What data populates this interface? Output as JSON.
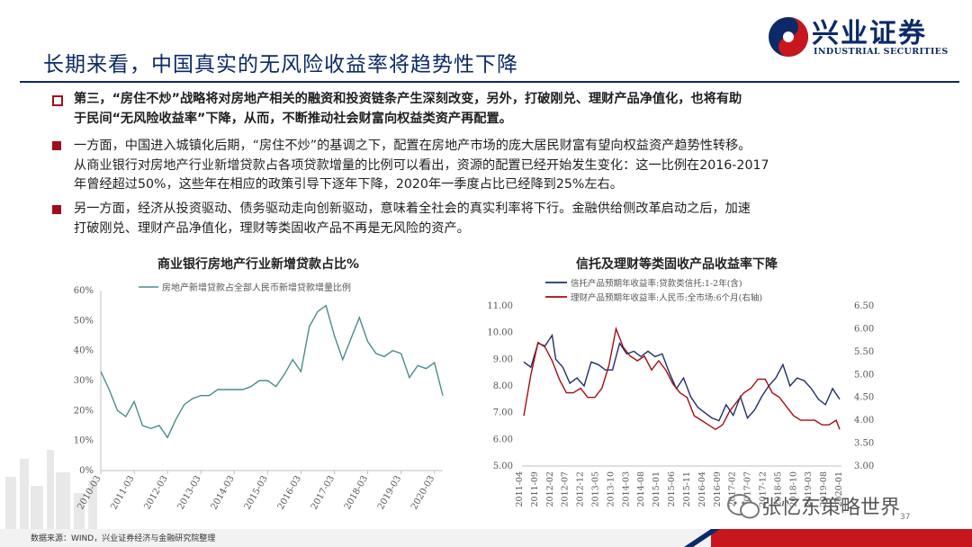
{
  "header": {
    "logo_cn": "兴业证券",
    "logo_en": "INDUSTRIAL SECURITIES",
    "title": "长期来看，中国真实的无风险收益率将趋势性下降"
  },
  "bullets": [
    {
      "style": "hollow",
      "bold": true,
      "lines": [
        "第三，“房住不炒”战略将对房地产相关的融资和投资链条产生深刻改变，另外，打破刚兑、理财产品净值化，也将有助",
        "于民间“无风险收益率”下降，从而，不断推动社会财富向权益类资产再配置。"
      ]
    },
    {
      "style": "solid",
      "bold": false,
      "lines": [
        "一方面，中国进入城镇化后期，“房住不炒”的基调之下，配置在房地产市场的庞大居民财富有望向权益资产趋势性转移。",
        "从商业银行对房地产行业新增贷款占各项贷款增量的比例可以看出，资源的配置已经开始发生变化：这一比例在2016-2017",
        "年曾经超过50%，这些年在相应的政策引导下逐年下降，2020年一季度占比已经降到25%左右。"
      ]
    },
    {
      "style": "solid",
      "bold": false,
      "lines": [
        "另一方面，经济从投资驱动、债务驱动走向创新驱动，意味着全社会的真实利率将下行。金融供给侧改革启动之后，加速",
        "打破刚兑、理财产品净值化，理财等类固收产品不再是无风险的资产。"
      ]
    }
  ],
  "colors": {
    "navy": "#0b2a67",
    "red": "#a10d1e",
    "line_left": "#4a8c8c",
    "line_navy": "#1f2f6b",
    "line_red": "#a50d10"
  },
  "chart_data": [
    {
      "type": "line",
      "title": "商业银行房地产行业新增贷款占比%",
      "legend": [
        "房地产新增贷款占全部人民币新增贷款增量比例"
      ],
      "y_ticks": [
        "0%",
        "10%",
        "20%",
        "30%",
        "40%",
        "50%",
        "60%"
      ],
      "ylim": [
        0,
        60
      ],
      "x_ticks": [
        "2010-03",
        "2011-03",
        "2012-03",
        "2013-03",
        "2014-03",
        "2015-03",
        "2016-03",
        "2017-03",
        "2018-03",
        "2019-03",
        "2020-03"
      ],
      "xlim": [
        2010.0,
        2020.25
      ],
      "series": [
        {
          "name": "房地产新增贷款占全部人民币新增贷款增量比例",
          "x": [
            2010.0,
            2010.25,
            2010.5,
            2010.75,
            2011.0,
            2011.25,
            2011.5,
            2011.75,
            2012.0,
            2012.25,
            2012.5,
            2012.75,
            2013.0,
            2013.25,
            2013.5,
            2013.75,
            2014.0,
            2014.25,
            2014.5,
            2014.75,
            2015.0,
            2015.25,
            2015.5,
            2015.75,
            2016.0,
            2016.25,
            2016.5,
            2016.75,
            2017.0,
            2017.25,
            2017.5,
            2017.75,
            2018.0,
            2018.25,
            2018.5,
            2018.75,
            2019.0,
            2019.25,
            2019.5,
            2019.75,
            2020.0,
            2020.25
          ],
          "y": [
            33,
            27,
            20,
            18,
            23,
            15,
            14,
            15,
            11,
            17,
            22,
            24,
            25,
            25,
            27,
            27,
            27,
            27,
            28,
            30,
            30,
            28,
            32,
            37,
            33,
            48,
            53,
            55,
            45,
            37,
            44,
            51,
            43,
            39,
            38,
            40,
            39,
            31,
            35,
            34,
            36,
            25
          ]
        }
      ]
    },
    {
      "type": "line",
      "title": "信托及理财等类固收产品收益率下降",
      "legend": [
        "信托产品预期年收益率:贷款类信托:1-2年(含)",
        "理财产品预期年收益率:人民币:全市场:6个月(右轴)"
      ],
      "y_left_ticks": [
        "5.00",
        "6.00",
        "7.00",
        "8.00",
        "9.00",
        "10.00",
        "11.00"
      ],
      "ylim_left": [
        5,
        11
      ],
      "y_right_ticks": [
        "3.00",
        "3.50",
        "4.00",
        "4.50",
        "5.00",
        "5.50",
        "6.00",
        "6.50"
      ],
      "ylim_right": [
        3,
        6.5
      ],
      "x_ticks": [
        "2011-04",
        "2011-09",
        "2012-02",
        "2012-07",
        "2012-12",
        "2013-05",
        "2013-10",
        "2014-03",
        "2014-08",
        "2015-01",
        "2015-06",
        "2015-11",
        "2016-04",
        "2016-09",
        "2017-02",
        "2017-07",
        "2017-12",
        "2018-05",
        "2018-10",
        "2019-03",
        "2019-08",
        "2020-01"
      ],
      "xlim": [
        2011.25,
        2020.25
      ],
      "series": [
        {
          "name": "信托产品预期年收益率:贷款类信托:1-2年(含)",
          "axis": "left",
          "x": [
            2011.3,
            2011.5,
            2011.7,
            2011.9,
            2012.1,
            2012.2,
            2012.4,
            2012.6,
            2012.8,
            2013.0,
            2013.2,
            2013.4,
            2013.6,
            2013.8,
            2014.0,
            2014.2,
            2014.4,
            2014.6,
            2014.8,
            2015.0,
            2015.2,
            2015.4,
            2015.6,
            2015.8,
            2016.0,
            2016.2,
            2016.4,
            2016.6,
            2016.8,
            2017.0,
            2017.2,
            2017.4,
            2017.6,
            2017.8,
            2018.0,
            2018.2,
            2018.4,
            2018.6,
            2018.8,
            2019.0,
            2019.2,
            2019.4,
            2019.6,
            2019.8,
            2020.0,
            2020.2
          ],
          "y": [
            8.9,
            8.7,
            9.6,
            9.5,
            9.9,
            9.0,
            8.7,
            8.1,
            8.3,
            8.0,
            8.9,
            8.8,
            8.6,
            8.6,
            9.6,
            9.2,
            9.3,
            9.1,
            9.3,
            9.1,
            9.2,
            8.5,
            7.9,
            8.3,
            7.6,
            7.2,
            7.0,
            6.8,
            6.7,
            7.3,
            6.9,
            7.6,
            6.8,
            7.1,
            7.6,
            8.0,
            8.3,
            8.8,
            8.0,
            8.3,
            8.2,
            7.9,
            7.5,
            7.3,
            7.9,
            7.5
          ]
        },
        {
          "name": "理财产品预期年收益率:人民币:全市场:6个月(右轴)",
          "axis": "right",
          "x": [
            2011.3,
            2011.5,
            2011.7,
            2011.9,
            2012.1,
            2012.3,
            2012.5,
            2012.7,
            2012.9,
            2013.1,
            2013.3,
            2013.5,
            2013.7,
            2013.9,
            2014.1,
            2014.3,
            2014.5,
            2014.7,
            2014.9,
            2015.1,
            2015.3,
            2015.5,
            2015.7,
            2015.9,
            2016.1,
            2016.3,
            2016.5,
            2016.7,
            2016.9,
            2017.1,
            2017.3,
            2017.5,
            2017.7,
            2017.9,
            2018.1,
            2018.3,
            2018.5,
            2018.7,
            2018.9,
            2019.1,
            2019.3,
            2019.5,
            2019.7,
            2019.9,
            2020.1,
            2020.2
          ],
          "y": [
            4.1,
            5.0,
            5.7,
            5.6,
            5.3,
            4.9,
            4.6,
            4.6,
            4.7,
            4.5,
            4.5,
            4.7,
            5.2,
            6.0,
            5.6,
            5.4,
            5.3,
            5.4,
            5.1,
            5.3,
            5.1,
            4.8,
            4.6,
            4.5,
            4.1,
            4.0,
            3.9,
            3.8,
            3.9,
            4.2,
            4.4,
            4.6,
            4.7,
            4.9,
            4.9,
            4.6,
            4.5,
            4.3,
            4.1,
            4.0,
            4.0,
            4.0,
            3.9,
            3.9,
            4.0,
            3.8
          ]
        }
      ]
    }
  ],
  "footer": {
    "source": "数据来源：WIND，兴业证券经济与金融研究院整理",
    "watermark": "张忆东策略世界",
    "page": "37"
  }
}
